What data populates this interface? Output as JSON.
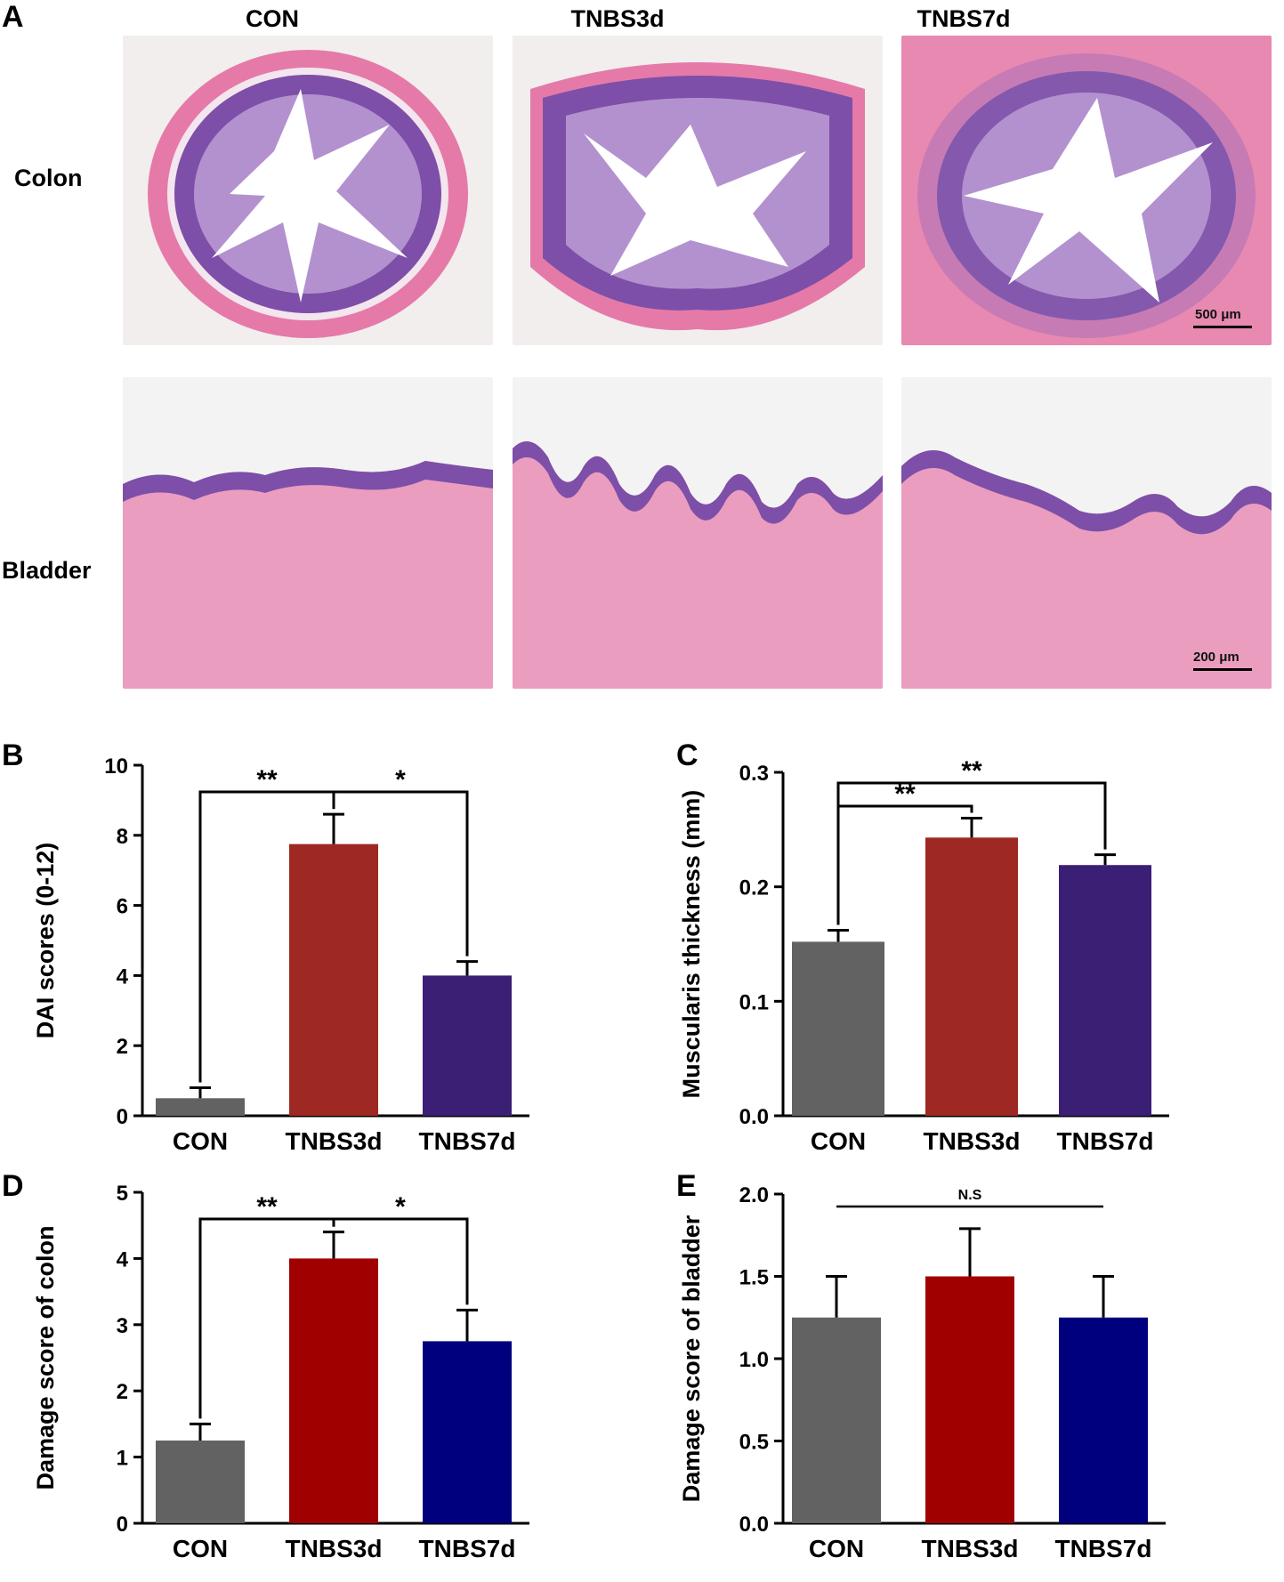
{
  "panel_a": {
    "letter": "A",
    "columns": [
      "CON",
      "TNBS3d",
      "TNBS7d"
    ],
    "rows": [
      "Colon",
      "Bladder"
    ],
    "scale_colon": "500 μm",
    "scale_bladder": "200 μm"
  },
  "colors": {
    "CON": "#626262",
    "TNBS3d": "#9e2822",
    "TNBS7d": "#3a1f75",
    "TNBS3d_alt": "#a00000",
    "TNBS7d_alt": "#00007f",
    "tissue_pink": "#e8a3c0",
    "tissue_purple": "#6c3f97"
  },
  "chart_data": [
    {
      "id": "B",
      "letter": "B",
      "type": "bar",
      "categories": [
        "CON",
        "TNBS3d",
        "TNBS7d"
      ],
      "values": [
        0.5,
        7.75,
        4.0
      ],
      "errors": [
        0.3,
        0.85,
        0.4
      ],
      "ylabel": "DAI scores (0-12)",
      "ylim": [
        0,
        10
      ],
      "yticks": [
        0,
        2,
        4,
        6,
        8,
        10
      ],
      "yticklabels": [
        "0",
        "2",
        "4",
        "6",
        "8",
        "10"
      ],
      "colors": [
        "#626262",
        "#9e2822",
        "#3a1f75"
      ],
      "significance": [
        {
          "from": 0,
          "to": 1,
          "label": "**"
        },
        {
          "from": 1,
          "to": 2,
          "label": "*"
        }
      ]
    },
    {
      "id": "C",
      "letter": "C",
      "type": "bar",
      "categories": [
        "CON",
        "TNBS3d",
        "TNBS7d"
      ],
      "values": [
        0.152,
        0.243,
        0.219
      ],
      "errors": [
        0.01,
        0.017,
        0.009
      ],
      "ylabel": "Muscularis  thickness (mm)",
      "ylim": [
        0,
        0.3
      ],
      "yticks": [
        0,
        0.1,
        0.2,
        0.3
      ],
      "yticklabels": [
        "0.0",
        "0.1",
        "0.2",
        "0.3"
      ],
      "colors": [
        "#626262",
        "#9e2822",
        "#3a1f75"
      ],
      "significance": [
        {
          "from": 0,
          "to": 1,
          "label": "**"
        },
        {
          "from": 0,
          "to": 2,
          "label": "**"
        }
      ]
    },
    {
      "id": "D",
      "letter": "D",
      "type": "bar",
      "categories": [
        "CON",
        "TNBS3d",
        "TNBS7d"
      ],
      "values": [
        1.25,
        4.0,
        2.75
      ],
      "errors": [
        0.25,
        0.4,
        0.47
      ],
      "ylabel": "Damage score of colon",
      "ylim": [
        0,
        5
      ],
      "yticks": [
        0,
        1,
        2,
        3,
        4,
        5
      ],
      "yticklabels": [
        "0",
        "1",
        "2",
        "3",
        "4",
        "5"
      ],
      "colors": [
        "#626262",
        "#a00000",
        "#00007f"
      ],
      "significance": [
        {
          "from": 0,
          "to": 1,
          "label": "**"
        },
        {
          "from": 1,
          "to": 2,
          "label": "*"
        }
      ]
    },
    {
      "id": "E",
      "letter": "E",
      "type": "bar",
      "categories": [
        "CON",
        "TNBS3d",
        "TNBS7d"
      ],
      "values": [
        1.25,
        1.5,
        1.25
      ],
      "errors": [
        0.25,
        0.29,
        0.25
      ],
      "ylabel": "Damage score of bladder",
      "ylim": [
        0,
        2.0
      ],
      "yticks": [
        0,
        0.5,
        1.0,
        1.5,
        2.0
      ],
      "yticklabels": [
        "0.0",
        "0.5",
        "1.0",
        "1.5",
        "2.0"
      ],
      "colors": [
        "#626262",
        "#a00000",
        "#00007f"
      ],
      "significance": [
        {
          "from": 0,
          "to": 2,
          "label": "N.S"
        }
      ]
    }
  ]
}
